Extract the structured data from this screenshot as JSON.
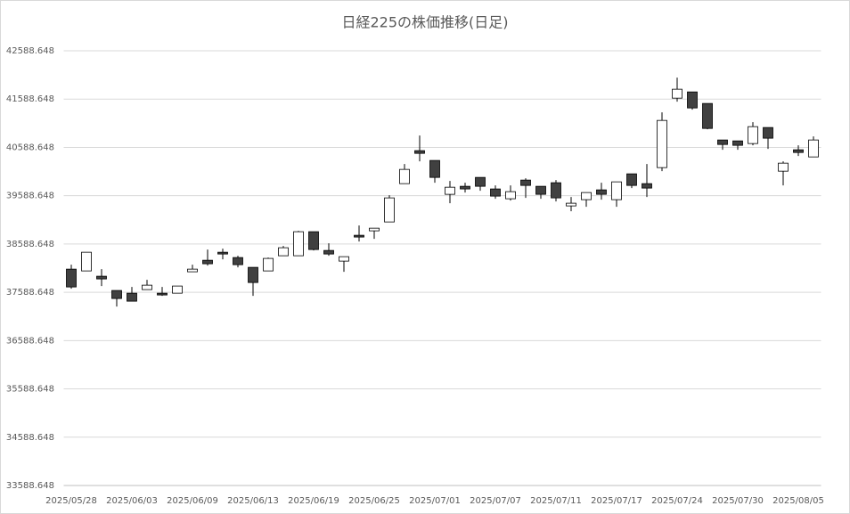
{
  "chart_data": {
    "type": "candlestick",
    "title": "日経225の株価推移(日足)",
    "categories": [
      "2025/05/28",
      null,
      null,
      null,
      "2025/06/03",
      null,
      null,
      null,
      "2025/06/09",
      null,
      null,
      null,
      "2025/06/13",
      null,
      null,
      null,
      "2025/06/19",
      null,
      null,
      null,
      "2025/06/25",
      null,
      null,
      null,
      "2025/07/01",
      null,
      null,
      null,
      "2025/07/07",
      null,
      null,
      null,
      "2025/07/11",
      null,
      null,
      null,
      "2025/07/17",
      null,
      null,
      null,
      "2025/07/24",
      null,
      null,
      null,
      "2025/07/30",
      null,
      null,
      null,
      "2025/08/05",
      null
    ],
    "open": [
      38068,
      38031,
      37921,
      37626,
      37570,
      37644,
      37570,
      37570,
      38013,
      38252,
      38418,
      38308,
      38105,
      38031,
      38345,
      38345,
      38843,
      38455,
      38234,
      38769,
      38861,
      39045,
      39838,
      40521,
      40318,
      39617,
      39783,
      39967,
      39728,
      39525,
      39912,
      39783,
      39857,
      39377,
      39506,
      39709,
      39506,
      40041,
      39838,
      40170,
      41608,
      41737,
      41498,
      40742,
      40723,
      40668,
      41000,
      40096,
      40539,
      40391
    ],
    "high": [
      38160,
      38418,
      38068,
      37626,
      37699,
      37847,
      37699,
      37718,
      38160,
      38474,
      38492,
      38345,
      38105,
      38308,
      38548,
      38861,
      38843,
      38603,
      38326,
      38971,
      38916,
      39598,
      40244,
      40834,
      40318,
      39893,
      39857,
      39967,
      39801,
      39801,
      39949,
      39783,
      39912,
      39562,
      39654,
      39857,
      39875,
      40041,
      40244,
      41313,
      42032,
      41737,
      41498,
      40742,
      40723,
      41110,
      41000,
      40299,
      40631,
      40816
    ],
    "low": [
      37662,
      38031,
      37718,
      37294,
      37404,
      37644,
      37515,
      37570,
      38013,
      38142,
      38271,
      38105,
      37515,
      38031,
      38345,
      38345,
      38455,
      38345,
      38013,
      38640,
      38695,
      39045,
      39838,
      40299,
      39857,
      39433,
      39654,
      39691,
      39525,
      39488,
      39543,
      39525,
      39469,
      39267,
      39359,
      39506,
      39359,
      39746,
      39562,
      40096,
      41535,
      41369,
      40963,
      40539,
      40539,
      40631,
      40557,
      39801,
      40410,
      40391
    ],
    "close": [
      37699,
      38418,
      37865,
      37460,
      37404,
      37736,
      37533,
      37718,
      38068,
      38179,
      38381,
      38160,
      37791,
      38290,
      38511,
      38843,
      38474,
      38381,
      38326,
      38732,
      38916,
      39543,
      40133,
      40465,
      39967,
      39764,
      39728,
      39783,
      39580,
      39672,
      39801,
      39617,
      39543,
      39433,
      39654,
      39617,
      39875,
      39801,
      39746,
      41147,
      41793,
      41405,
      40981,
      40649,
      40631,
      41018,
      40779,
      40262,
      40483,
      40742
    ],
    "up_color": "#ffffff",
    "down_color": "#404040",
    "edge_color": "#000000",
    "ylim": [
      33588.648,
      42588.648
    ],
    "yticks": [
      33588.648,
      34588.648,
      35588.648,
      36588.648,
      37588.648,
      38588.648,
      39588.648,
      40588.648,
      41588.648,
      42588.648
    ],
    "grid": true
  }
}
